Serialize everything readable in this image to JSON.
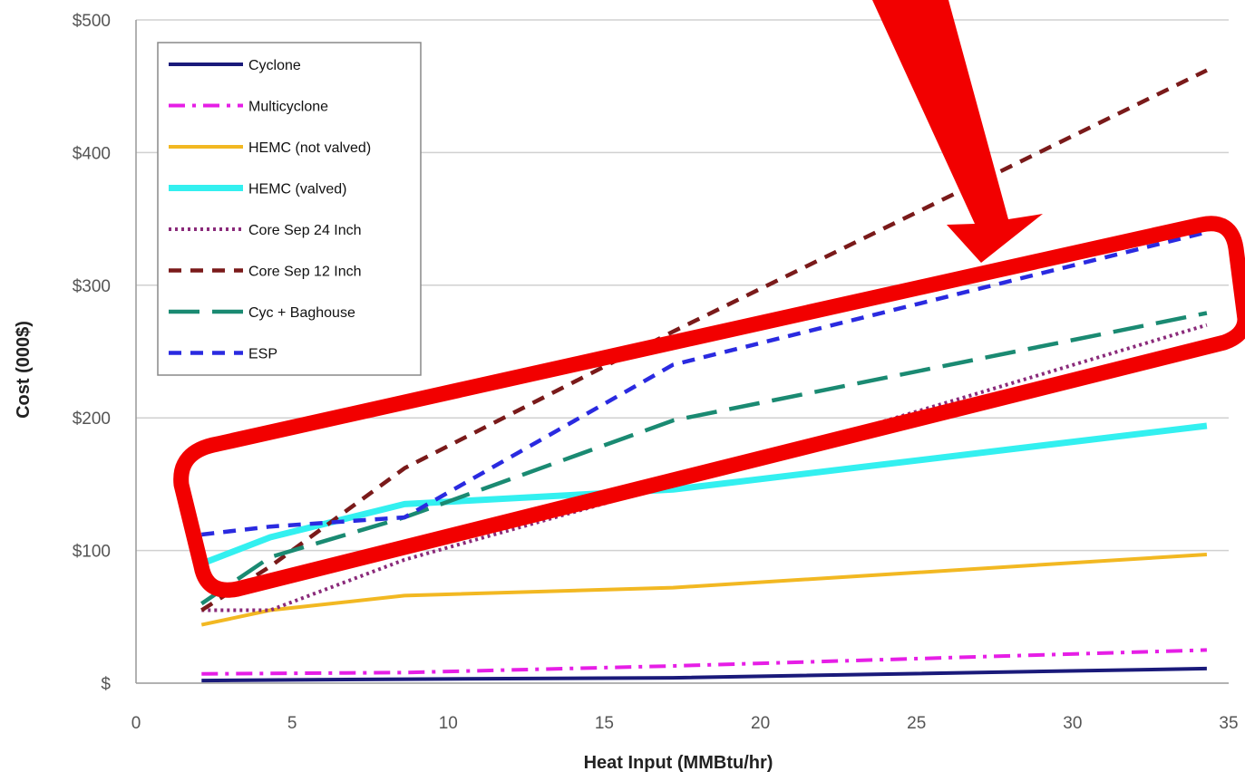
{
  "chart_data": {
    "type": "line",
    "title": "",
    "xlabel": "Heat Input (MMBtu/hr)",
    "ylabel": "Cost (000$)",
    "xlim": [
      0,
      35
    ],
    "ylim": [
      0,
      500
    ],
    "x_ticks": [
      "0",
      "5",
      "10",
      "15",
      "20",
      "25",
      "30",
      "35"
    ],
    "y_ticks": [
      "$",
      "$100",
      "$200",
      "$300",
      "$400",
      "$500"
    ],
    "grid": "horizontal",
    "legend_position": "top-left",
    "series": [
      {
        "name": "Cyclone",
        "color": "#1a1a7a",
        "style": "solid",
        "points": [
          [
            2.1,
            2
          ],
          [
            8.6,
            3
          ],
          [
            17.2,
            4
          ],
          [
            34.3,
            11
          ]
        ]
      },
      {
        "name": "Multicyclone",
        "color": "#e61ee6",
        "style": "dashdot",
        "points": [
          [
            2.1,
            7
          ],
          [
            8.6,
            8
          ],
          [
            17.2,
            13
          ],
          [
            34.3,
            25
          ]
        ]
      },
      {
        "name": "HEMC (not valved)",
        "color": "#f2b822",
        "style": "solid",
        "points": [
          [
            2.1,
            44
          ],
          [
            4.3,
            55
          ],
          [
            8.6,
            66
          ],
          [
            17.2,
            72
          ],
          [
            34.3,
            97
          ]
        ]
      },
      {
        "name": "HEMC (valved)",
        "color": "#33f0f0",
        "style": "solid-thick",
        "points": [
          [
            2.1,
            90
          ],
          [
            4.3,
            110
          ],
          [
            8.6,
            135
          ],
          [
            17.2,
            146
          ],
          [
            34.3,
            194
          ]
        ]
      },
      {
        "name": "Core Sep 24 Inch",
        "color": "#8a2a7a",
        "style": "dotted",
        "points": [
          [
            2.1,
            55
          ],
          [
            4.3,
            55
          ],
          [
            8.6,
            93
          ],
          [
            17.2,
            150
          ],
          [
            34.3,
            270
          ]
        ]
      },
      {
        "name": "Core Sep 12 Inch",
        "color": "#7a1a1a",
        "style": "dashed",
        "points": [
          [
            2.1,
            55
          ],
          [
            4.3,
            88
          ],
          [
            8.6,
            162
          ],
          [
            17.2,
            265
          ],
          [
            34.3,
            462
          ]
        ]
      },
      {
        "name": "Cyc + Baghouse",
        "color": "#1a8a72",
        "style": "longdash",
        "points": [
          [
            2.1,
            60
          ],
          [
            4.3,
            95
          ],
          [
            8.6,
            125
          ],
          [
            17.2,
            198
          ],
          [
            34.3,
            279
          ]
        ]
      },
      {
        "name": "ESP",
        "color": "#2a2ae0",
        "style": "dashed",
        "points": [
          [
            2.1,
            112
          ],
          [
            4.3,
            118
          ],
          [
            8.6,
            125
          ],
          [
            17.2,
            240
          ],
          [
            34.3,
            340
          ]
        ]
      }
    ],
    "annotations": [
      {
        "kind": "arrow",
        "color": "#ff0000"
      },
      {
        "kind": "rounded-rectangle-highlight",
        "color": "#ff0000"
      }
    ]
  }
}
